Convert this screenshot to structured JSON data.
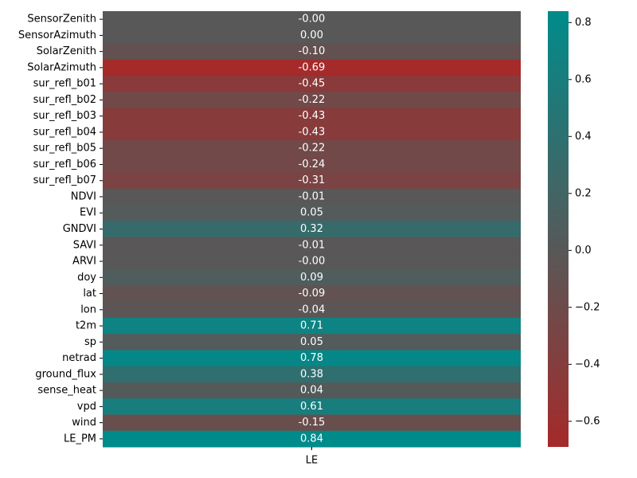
{
  "chart_data": {
    "type": "heatmap",
    "columns": [
      "LE"
    ],
    "rows": [
      "SensorZenith",
      "SensorAzimuth",
      "SolarZenith",
      "SolarAzimuth",
      "sur_refl_b01",
      "sur_refl_b02",
      "sur_refl_b03",
      "sur_refl_b04",
      "sur_refl_b05",
      "sur_refl_b06",
      "sur_refl_b07",
      "NDVI",
      "EVI",
      "GNDVI",
      "SAVI",
      "ARVI",
      "doy",
      "lat",
      "lon",
      "t2m",
      "sp",
      "netrad",
      "ground_flux",
      "sense_heat",
      "vpd",
      "wind",
      "LE_PM"
    ],
    "values": [
      -0.001,
      0.001,
      -0.1,
      -0.69,
      -0.45,
      -0.22,
      -0.43,
      -0.43,
      -0.22,
      -0.24,
      -0.31,
      -0.01,
      0.05,
      0.32,
      -0.01,
      -0.001,
      0.09,
      -0.09,
      -0.04,
      0.71,
      0.05,
      0.78,
      0.38,
      0.04,
      0.61,
      -0.15,
      0.84
    ],
    "labels": [
      "-0.00",
      "0.00",
      "-0.10",
      "-0.69",
      "-0.45",
      "-0.22",
      "-0.43",
      "-0.43",
      "-0.22",
      "-0.24",
      "-0.31",
      "-0.01",
      "0.05",
      "0.32",
      "-0.01",
      "-0.00",
      "0.09",
      "-0.09",
      "-0.04",
      "0.71",
      "0.05",
      "0.78",
      "0.38",
      "0.04",
      "0.61",
      "-0.15",
      "0.84"
    ],
    "colorbar": {
      "vmin": -0.69,
      "vmax": 0.84,
      "ticks": [
        0.8,
        0.6,
        0.4,
        0.2,
        0.0,
        -0.2,
        -0.4,
        -0.6
      ],
      "tick_labels": [
        "0.8",
        "0.6",
        "0.4",
        "0.2",
        "0.0",
        "−0.2",
        "−0.4",
        "−0.6"
      ]
    },
    "colors": {
      "negative": "#a52a2a",
      "zero": "#585858",
      "positive": "#008b8b",
      "annotation_text": "#ffffff",
      "axis_text": "#000000"
    },
    "title": "",
    "xlabel": "",
    "ylabel": ""
  }
}
